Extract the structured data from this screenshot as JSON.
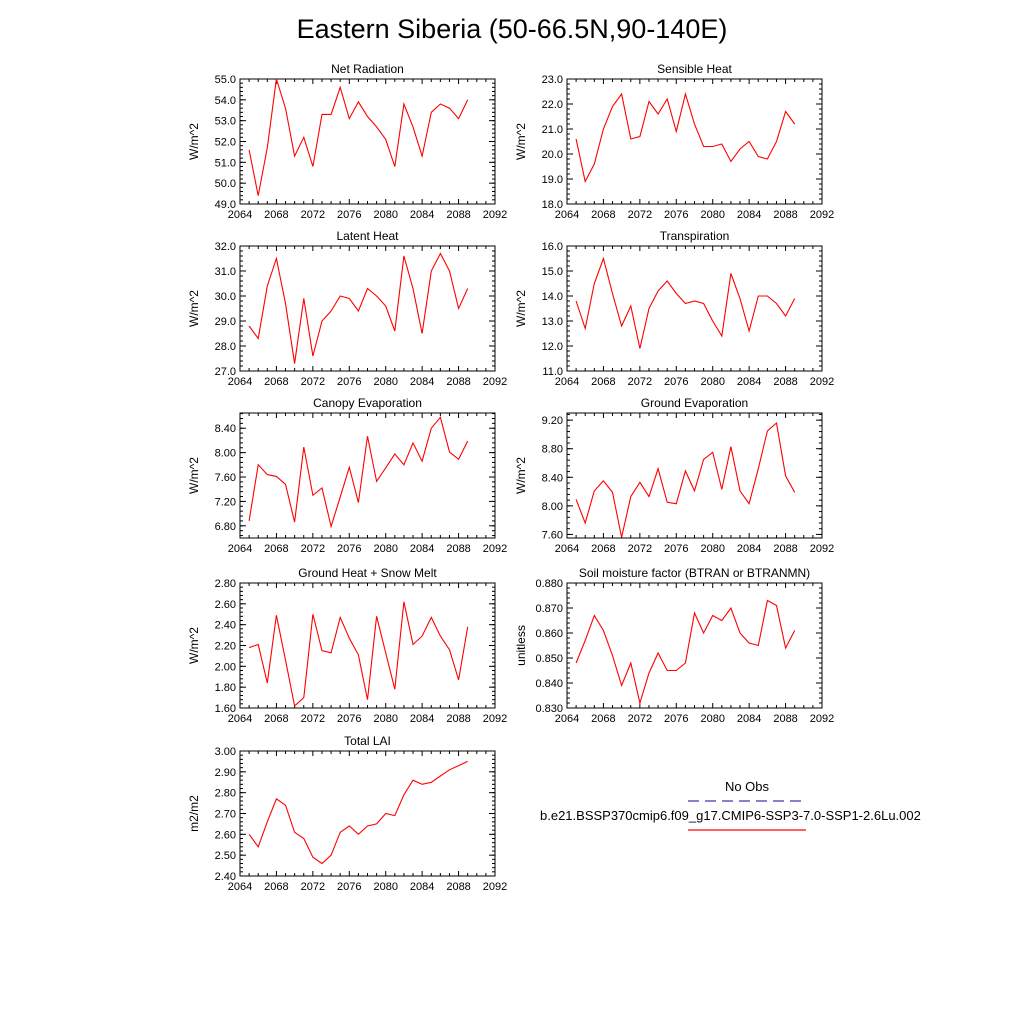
{
  "title": "Eastern Siberia (50-66.5N,90-140E)",
  "legend": {
    "obs_label": "No Obs",
    "obs_color": "#3b3bb0",
    "model_label": "b.e21.BSSP370cmip6.f09_g17.CMIP6-SSP3-7.0-SSP1-2.6Lu.002",
    "model_color": "#ff0000"
  },
  "chart_data": [
    {
      "type": "line",
      "title": "Net Radiation",
      "ylabel": "W/m^2",
      "xlim": [
        2064,
        2092
      ],
      "xticks": [
        2064,
        2068,
        2072,
        2076,
        2080,
        2084,
        2088,
        2092
      ],
      "ylim": [
        49.0,
        55.0
      ],
      "yticks": [
        "49.0",
        "50.0",
        "51.0",
        "52.0",
        "53.0",
        "54.0",
        "55.0"
      ],
      "x": [
        2065,
        2066,
        2067,
        2068,
        2069,
        2070,
        2071,
        2072,
        2073,
        2074,
        2075,
        2076,
        2077,
        2078,
        2079,
        2080,
        2081,
        2082,
        2083,
        2084,
        2085,
        2086,
        2087,
        2088,
        2089
      ],
      "series": [
        {
          "values": [
            51.6,
            49.4,
            51.7,
            55.0,
            53.6,
            51.3,
            52.2,
            50.8,
            53.3,
            53.3,
            54.6,
            53.1,
            53.9,
            53.2,
            52.7,
            52.1,
            50.8,
            53.8,
            52.7,
            51.3,
            53.4,
            53.8,
            53.6,
            53.1,
            54.0
          ]
        }
      ]
    },
    {
      "type": "line",
      "title": "Sensible Heat",
      "ylabel": "W/m^2",
      "xlim": [
        2064,
        2092
      ],
      "xticks": [
        2064,
        2068,
        2072,
        2076,
        2080,
        2084,
        2088,
        2092
      ],
      "ylim": [
        18.0,
        23.0
      ],
      "yticks": [
        "18.0",
        "19.0",
        "20.0",
        "21.0",
        "22.0",
        "23.0"
      ],
      "x": [
        2065,
        2066,
        2067,
        2068,
        2069,
        2070,
        2071,
        2072,
        2073,
        2074,
        2075,
        2076,
        2077,
        2078,
        2079,
        2080,
        2081,
        2082,
        2083,
        2084,
        2085,
        2086,
        2087,
        2088,
        2089
      ],
      "series": [
        {
          "values": [
            20.6,
            18.9,
            19.6,
            21.0,
            21.9,
            22.4,
            20.6,
            20.7,
            22.1,
            21.6,
            22.2,
            20.9,
            22.4,
            21.2,
            20.3,
            20.3,
            20.4,
            19.7,
            20.2,
            20.5,
            19.9,
            19.8,
            20.5,
            21.7,
            21.2
          ]
        }
      ]
    },
    {
      "type": "line",
      "title": "Latent Heat",
      "ylabel": "W/m^2",
      "xlim": [
        2064,
        2092
      ],
      "xticks": [
        2064,
        2068,
        2072,
        2076,
        2080,
        2084,
        2088,
        2092
      ],
      "ylim": [
        27.0,
        32.0
      ],
      "yticks": [
        "27.0",
        "28.0",
        "29.0",
        "30.0",
        "31.0",
        "32.0"
      ],
      "x": [
        2065,
        2066,
        2067,
        2068,
        2069,
        2070,
        2071,
        2072,
        2073,
        2074,
        2075,
        2076,
        2077,
        2078,
        2079,
        2080,
        2081,
        2082,
        2083,
        2084,
        2085,
        2086,
        2087,
        2088,
        2089
      ],
      "series": [
        {
          "values": [
            28.8,
            28.3,
            30.4,
            31.5,
            29.7,
            27.3,
            29.9,
            27.6,
            29.0,
            29.4,
            30.0,
            29.9,
            29.4,
            30.3,
            30.0,
            29.6,
            28.6,
            31.6,
            30.3,
            28.5,
            31.0,
            31.7,
            31.0,
            29.5,
            30.3
          ]
        }
      ]
    },
    {
      "type": "line",
      "title": "Transpiration",
      "ylabel": "W/m^2",
      "xlim": [
        2064,
        2092
      ],
      "xticks": [
        2064,
        2068,
        2072,
        2076,
        2080,
        2084,
        2088,
        2092
      ],
      "ylim": [
        11.0,
        16.0
      ],
      "yticks": [
        "11.0",
        "12.0",
        "13.0",
        "14.0",
        "15.0",
        "16.0"
      ],
      "x": [
        2065,
        2066,
        2067,
        2068,
        2069,
        2070,
        2071,
        2072,
        2073,
        2074,
        2075,
        2076,
        2077,
        2078,
        2079,
        2080,
        2081,
        2082,
        2083,
        2084,
        2085,
        2086,
        2087,
        2088,
        2089
      ],
      "series": [
        {
          "values": [
            13.8,
            12.7,
            14.5,
            15.5,
            14.1,
            12.8,
            13.6,
            11.9,
            13.5,
            14.2,
            14.6,
            14.1,
            13.7,
            13.8,
            13.7,
            13.0,
            12.4,
            14.9,
            13.9,
            12.6,
            14.0,
            14.0,
            13.7,
            13.2,
            13.9
          ]
        }
      ]
    },
    {
      "type": "line",
      "title": "Canopy Evaporation",
      "ylabel": "W/m^2",
      "xlim": [
        2064,
        2092
      ],
      "xticks": [
        2064,
        2068,
        2072,
        2076,
        2080,
        2084,
        2088,
        2092
      ],
      "ylim": [
        6.6,
        8.65
      ],
      "yticks": [
        "6.80",
        "7.20",
        "7.60",
        "8.00",
        "8.40"
      ],
      "x": [
        2065,
        2066,
        2067,
        2068,
        2069,
        2070,
        2071,
        2072,
        2073,
        2074,
        2075,
        2076,
        2077,
        2078,
        2079,
        2080,
        2081,
        2082,
        2083,
        2084,
        2085,
        2086,
        2087,
        2088,
        2089
      ],
      "series": [
        {
          "values": [
            6.88,
            7.8,
            7.64,
            7.61,
            7.48,
            6.86,
            8.09,
            7.3,
            7.42,
            6.79,
            7.27,
            7.76,
            7.18,
            8.27,
            7.53,
            7.75,
            7.98,
            7.8,
            8.16,
            7.86,
            8.4,
            8.58,
            8.01,
            7.89,
            8.19
          ]
        }
      ]
    },
    {
      "type": "line",
      "title": "Ground Evaporation",
      "ylabel": "W/m^2",
      "xlim": [
        2064,
        2092
      ],
      "xticks": [
        2064,
        2068,
        2072,
        2076,
        2080,
        2084,
        2088,
        2092
      ],
      "ylim": [
        7.55,
        9.3
      ],
      "yticks": [
        "7.60",
        "8.00",
        "8.40",
        "8.80",
        "9.20"
      ],
      "x": [
        2065,
        2066,
        2067,
        2068,
        2069,
        2070,
        2071,
        2072,
        2073,
        2074,
        2075,
        2076,
        2077,
        2078,
        2079,
        2080,
        2081,
        2082,
        2083,
        2084,
        2085,
        2086,
        2087,
        2088,
        2089
      ],
      "series": [
        {
          "values": [
            8.09,
            7.76,
            8.21,
            8.35,
            8.19,
            7.56,
            8.13,
            8.33,
            8.13,
            8.52,
            8.05,
            8.03,
            8.49,
            8.21,
            8.65,
            8.75,
            8.23,
            8.83,
            8.21,
            8.03,
            8.52,
            9.05,
            9.16,
            8.42,
            8.19
          ]
        }
      ]
    },
    {
      "type": "line",
      "title": "Ground Heat + Snow Melt",
      "ylabel": "W/m^2",
      "xlim": [
        2064,
        2092
      ],
      "xticks": [
        2064,
        2068,
        2072,
        2076,
        2080,
        2084,
        2088,
        2092
      ],
      "ylim": [
        1.6,
        2.8
      ],
      "yticks": [
        "1.60",
        "1.80",
        "2.00",
        "2.20",
        "2.40",
        "2.60",
        "2.80"
      ],
      "x": [
        2065,
        2066,
        2067,
        2068,
        2069,
        2070,
        2071,
        2072,
        2073,
        2074,
        2075,
        2076,
        2077,
        2078,
        2079,
        2080,
        2081,
        2082,
        2083,
        2084,
        2085,
        2086,
        2087,
        2088,
        2089
      ],
      "series": [
        {
          "values": [
            2.18,
            2.21,
            1.84,
            2.49,
            2.06,
            1.62,
            1.7,
            2.5,
            2.15,
            2.13,
            2.47,
            2.27,
            2.11,
            1.68,
            2.48,
            2.13,
            1.78,
            2.62,
            2.21,
            2.29,
            2.47,
            2.29,
            2.16,
            1.87,
            2.38
          ]
        }
      ]
    },
    {
      "type": "line",
      "title": "Soil moisture factor (BTRAN or BTRANMN)",
      "ylabel": "unitless",
      "xlim": [
        2064,
        2092
      ],
      "xticks": [
        2064,
        2068,
        2072,
        2076,
        2080,
        2084,
        2088,
        2092
      ],
      "ylim": [
        0.83,
        0.88
      ],
      "yticks": [
        "0.830",
        "0.840",
        "0.850",
        "0.860",
        "0.870",
        "0.880"
      ],
      "x": [
        2065,
        2066,
        2067,
        2068,
        2069,
        2070,
        2071,
        2072,
        2073,
        2074,
        2075,
        2076,
        2077,
        2078,
        2079,
        2080,
        2081,
        2082,
        2083,
        2084,
        2085,
        2086,
        2087,
        2088,
        2089
      ],
      "series": [
        {
          "values": [
            0.848,
            0.857,
            0.867,
            0.861,
            0.851,
            0.839,
            0.848,
            0.832,
            0.844,
            0.852,
            0.845,
            0.845,
            0.848,
            0.868,
            0.86,
            0.867,
            0.865,
            0.87,
            0.86,
            0.856,
            0.855,
            0.873,
            0.871,
            0.854,
            0.861
          ]
        }
      ]
    },
    {
      "type": "line",
      "title": "Total LAI",
      "ylabel": "m2/m2",
      "xlim": [
        2064,
        2092
      ],
      "xticks": [
        2064,
        2068,
        2072,
        2076,
        2080,
        2084,
        2088,
        2092
      ],
      "ylim": [
        2.4,
        3.0
      ],
      "yticks": [
        "2.40",
        "2.50",
        "2.60",
        "2.70",
        "2.80",
        "2.90",
        "3.00"
      ],
      "x": [
        2065,
        2066,
        2067,
        2068,
        2069,
        2070,
        2071,
        2072,
        2073,
        2074,
        2075,
        2076,
        2077,
        2078,
        2079,
        2080,
        2081,
        2082,
        2083,
        2084,
        2085,
        2086,
        2087,
        2088,
        2089
      ],
      "series": [
        {
          "values": [
            2.6,
            2.54,
            2.66,
            2.77,
            2.74,
            2.61,
            2.58,
            2.49,
            2.46,
            2.5,
            2.61,
            2.64,
            2.6,
            2.64,
            2.65,
            2.7,
            2.69,
            2.79,
            2.86,
            2.84,
            2.85,
            2.88,
            2.91,
            2.93,
            2.95
          ]
        }
      ]
    }
  ]
}
